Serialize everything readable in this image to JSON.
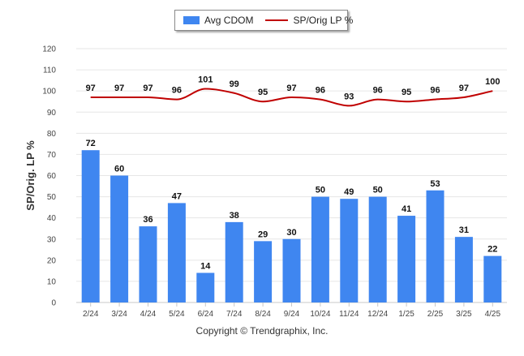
{
  "chart_data": {
    "type": "bar",
    "categories": [
      "2/24",
      "3/24",
      "4/24",
      "5/24",
      "6/24",
      "7/24",
      "8/24",
      "9/24",
      "10/24",
      "11/24",
      "12/24",
      "1/25",
      "2/25",
      "3/25",
      "4/25"
    ],
    "series": [
      {
        "name": "Avg CDOM",
        "type": "bar",
        "color": "#3f86f0",
        "values": [
          72,
          60,
          36,
          47,
          14,
          38,
          29,
          30,
          50,
          49,
          50,
          41,
          53,
          31,
          22
        ]
      },
      {
        "name": "SP/Orig LP %",
        "type": "line",
        "color": "#c00000",
        "values": [
          97,
          97,
          97,
          96,
          101,
          99,
          95,
          97,
          96,
          93,
          96,
          95,
          96,
          97,
          100
        ]
      }
    ],
    "ylabel": "SP/Orig. LP %",
    "xlabel": "",
    "ylim": [
      0,
      120
    ],
    "yticks": [
      0,
      10,
      20,
      30,
      40,
      50,
      60,
      70,
      80,
      90,
      100,
      110,
      120
    ],
    "grid": true,
    "legend_position": "top-center"
  },
  "footer": {
    "copyright": "Copyright © Trendgraphix, Inc."
  }
}
